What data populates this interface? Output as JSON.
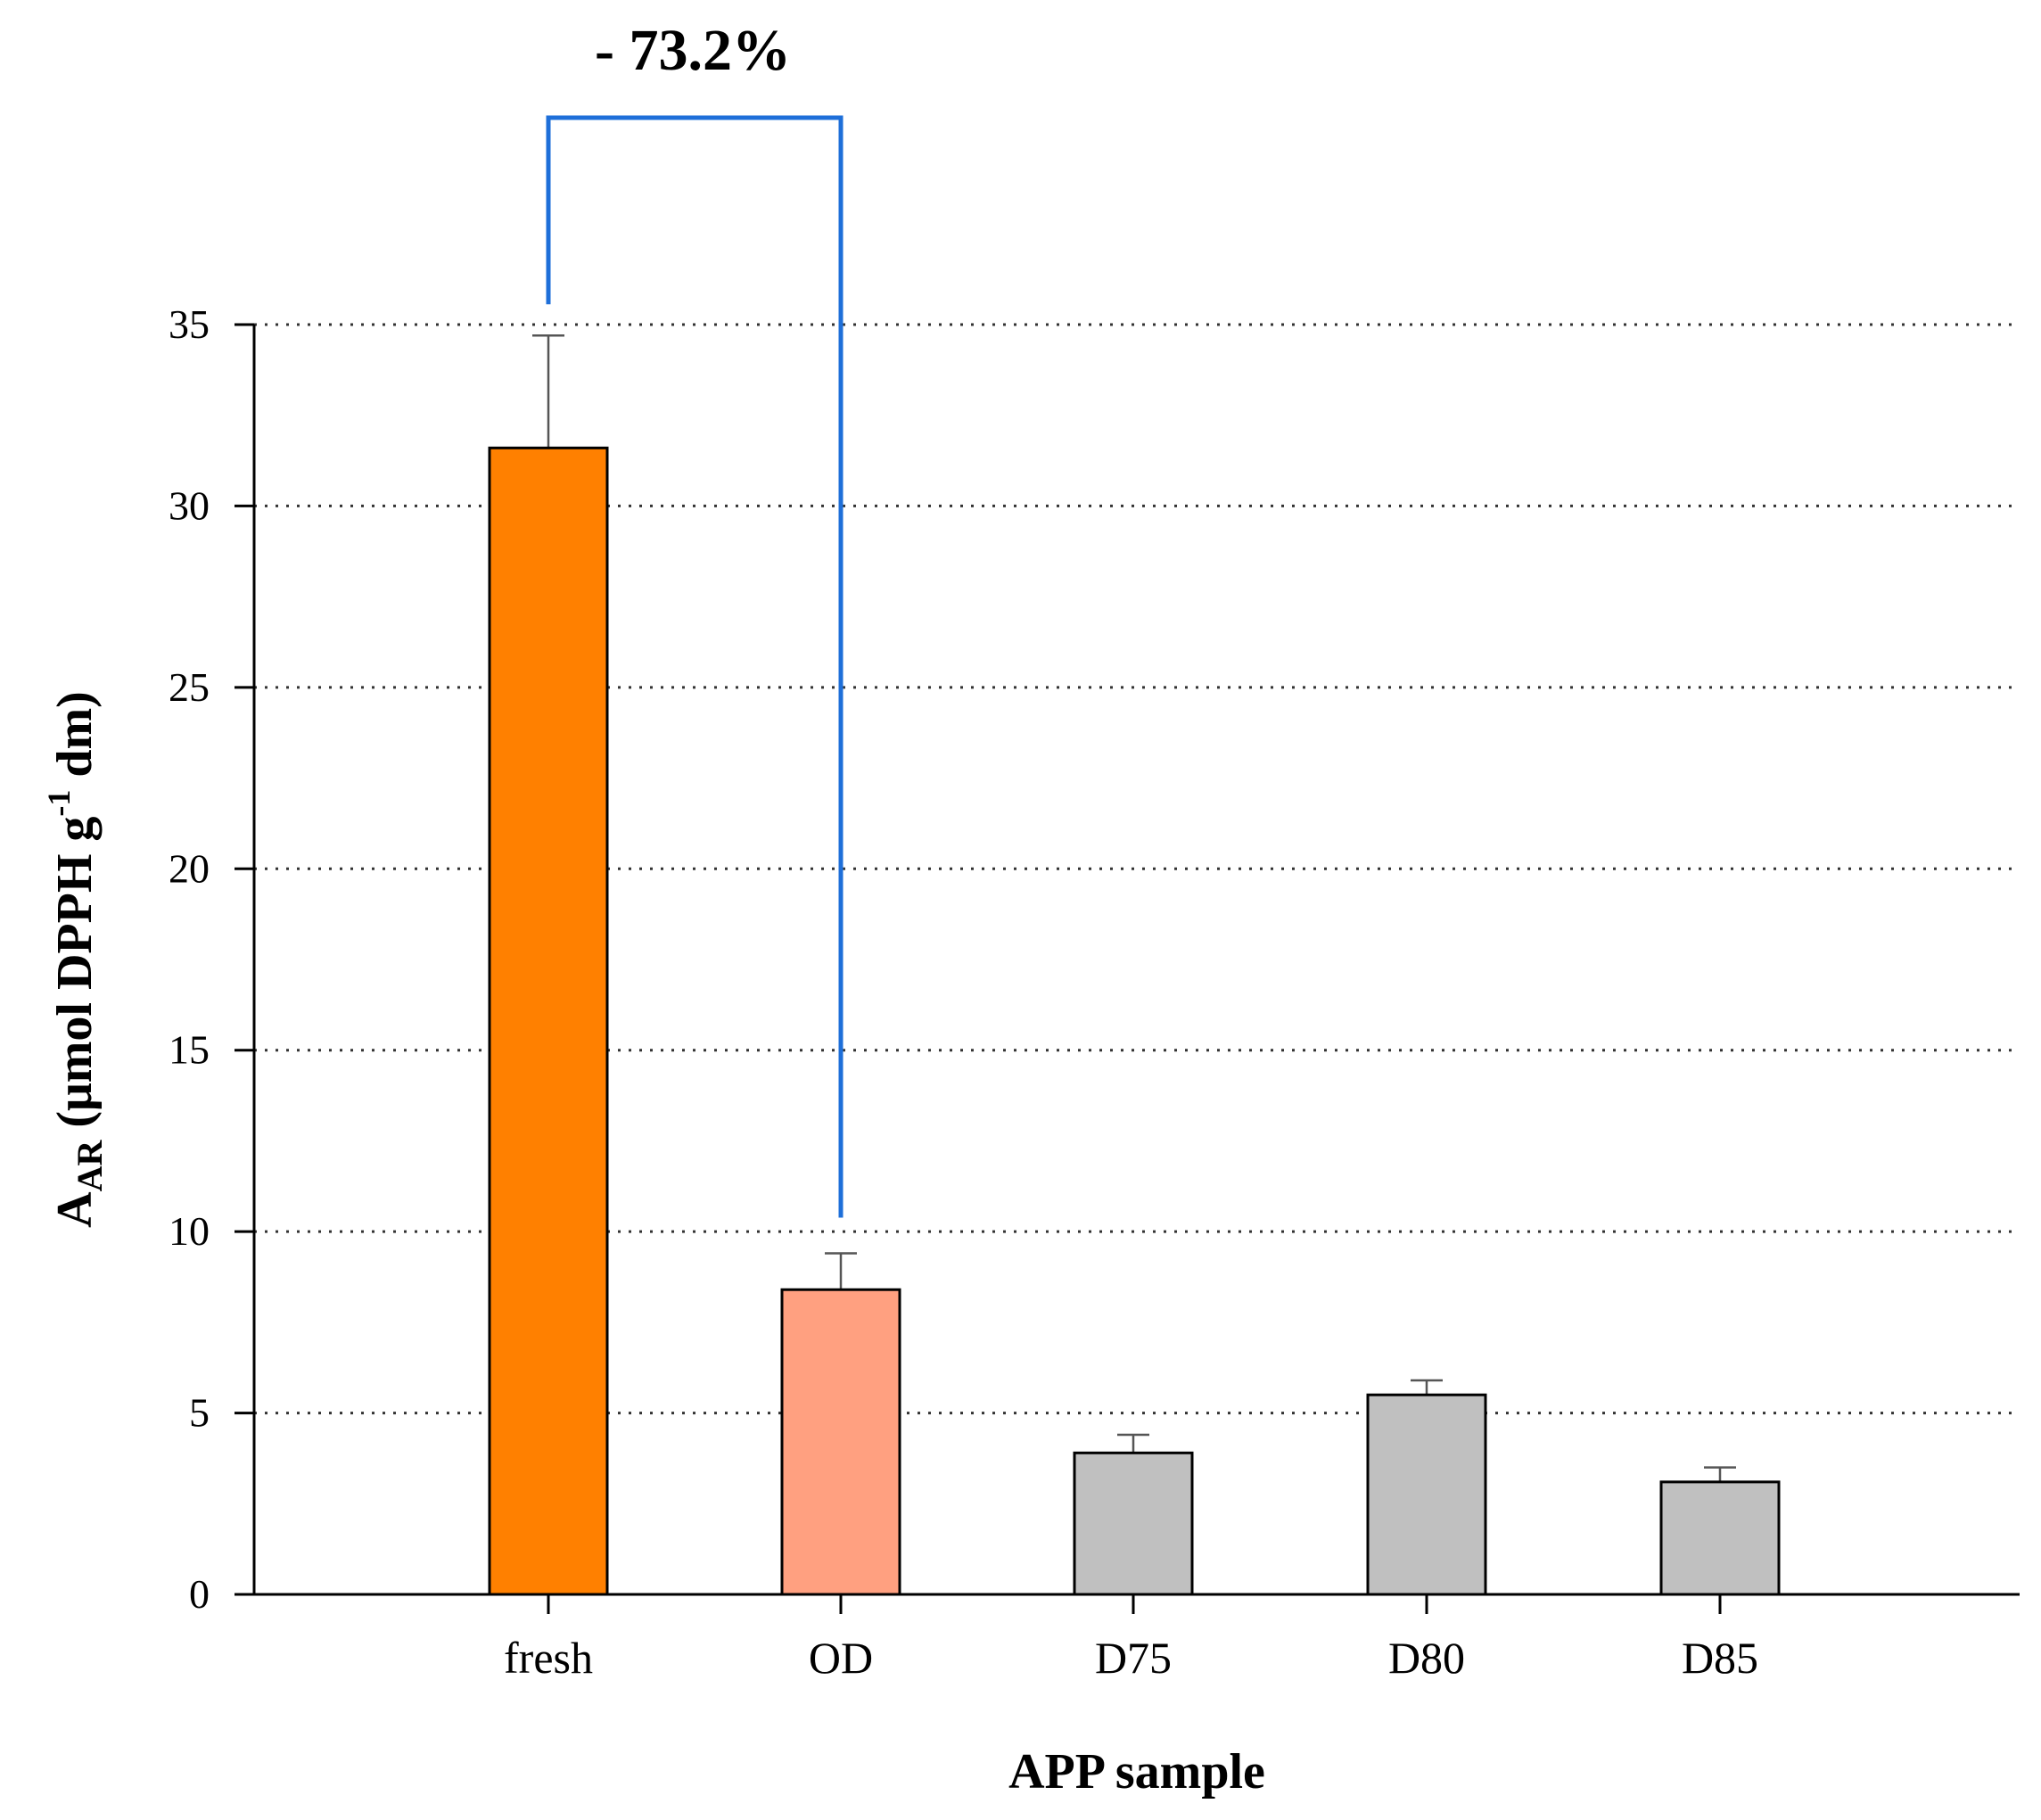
{
  "chart_data": {
    "type": "bar",
    "xlabel": "APP sample",
    "ylabel": {
      "main": "A",
      "sub": "AR",
      "rest_before_sup": " (μmol DPPH g",
      "sup": "-1",
      "rest_after_sup": " dm)"
    },
    "ylim": [
      0,
      35
    ],
    "yticks": [
      "0",
      "5",
      "10",
      "15",
      "20",
      "25",
      "30",
      "35"
    ],
    "grid": "horizontal dotted",
    "categories": [
      "fresh",
      "OD",
      "D75",
      "D80",
      "D85"
    ],
    "values": [
      31.6,
      8.4,
      3.9,
      5.5,
      3.1
    ],
    "errors": [
      3.1,
      1.0,
      0.5,
      0.4,
      0.4
    ],
    "colors": {
      "fresh": "#FF8000",
      "OD": "#FFA080",
      "D75": "#C0C0C0",
      "D80": "#C0C0C0",
      "D85": "#C0C0C0",
      "bracket": "#1E6FD9",
      "grid": "#333333",
      "axis": "#000000"
    },
    "annotation": {
      "label": "- 73.2%",
      "from_category": "fresh",
      "to_category": "OD"
    }
  }
}
